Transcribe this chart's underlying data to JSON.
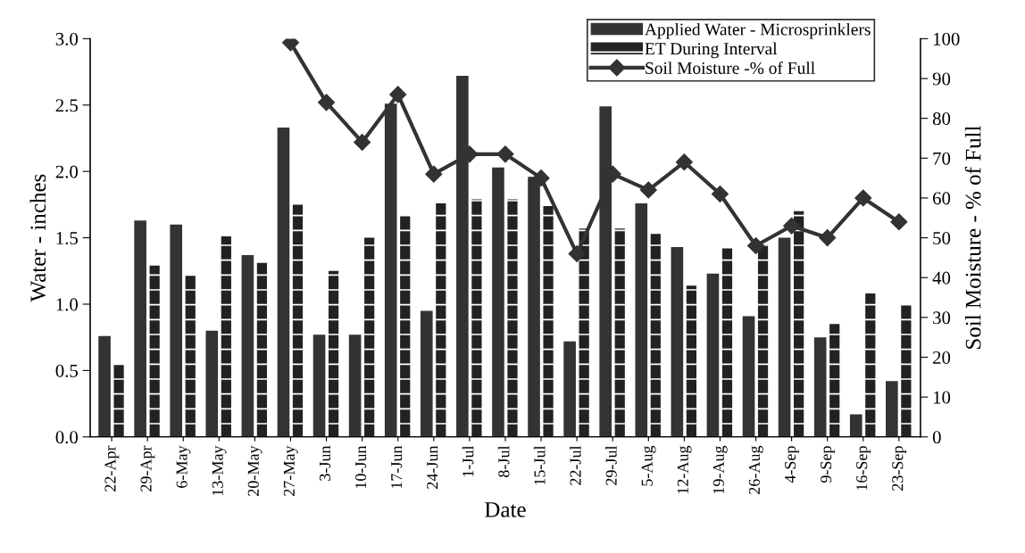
{
  "chart_data": {
    "type": "bar",
    "xlabel": "Date",
    "ylabel": "Water - inches",
    "y2label": "Soil Moisture - % of Full",
    "categories": [
      "22-Apr",
      "29-Apr",
      "6-May",
      "13-May",
      "20-May",
      "27-May",
      "3-Jun",
      "10-Jun",
      "17-Jun",
      "24-Jun",
      "1-Jul",
      "8-Jul",
      "15-Jul",
      "22-Jul",
      "29-Jul",
      "5-Aug",
      "12-Aug",
      "19-Aug",
      "26-Aug",
      "4-Sep",
      "9-Sep",
      "16-Sep",
      "23-Sep"
    ],
    "series": [
      {
        "name": "Applied Water - Microsprinklers",
        "color": "#333333",
        "type": "bar",
        "values": [
          0.76,
          1.63,
          1.6,
          0.8,
          1.37,
          2.33,
          0.77,
          0.77,
          2.51,
          0.95,
          2.72,
          2.03,
          1.96,
          0.72,
          2.49,
          1.76,
          1.43,
          1.23,
          0.91,
          1.5,
          0.75,
          0.17,
          0.42
        ]
      },
      {
        "name": "ET During Interval",
        "color": "#222222",
        "type": "bar",
        "values": [
          0.55,
          1.29,
          1.22,
          1.51,
          1.31,
          1.75,
          1.25,
          1.5,
          1.67,
          1.76,
          1.79,
          1.79,
          1.74,
          1.57,
          1.57,
          1.53,
          1.14,
          1.42,
          1.45,
          1.7,
          0.85,
          1.08,
          1.0
        ]
      },
      {
        "name": "Soil Moisture -% of Full",
        "color": "#333333",
        "type": "line",
        "axis": "y2",
        "marker": "diamond",
        "values": [
          null,
          null,
          null,
          null,
          null,
          99,
          84,
          74,
          86,
          66,
          71,
          71,
          65,
          46,
          66,
          62,
          69,
          61,
          48,
          53,
          50,
          60,
          54
        ]
      }
    ],
    "ylim": [
      0,
      3.0
    ],
    "yticks": [
      {
        "value": 0,
        "label": "0.0"
      },
      {
        "value": 0.5,
        "label": "0.5"
      },
      {
        "value": 1.0,
        "label": "1.0"
      },
      {
        "value": 1.5,
        "label": "1.5"
      },
      {
        "value": 2.0,
        "label": "2.0"
      },
      {
        "value": 2.5,
        "label": "2.5"
      },
      {
        "value": 3.0,
        "label": "3.0"
      }
    ],
    "y2lim": [
      0,
      100
    ],
    "y2ticks": [
      0,
      10,
      20,
      30,
      40,
      50,
      60,
      70,
      80,
      90,
      100
    ],
    "legend": "top right",
    "grid": false
  }
}
